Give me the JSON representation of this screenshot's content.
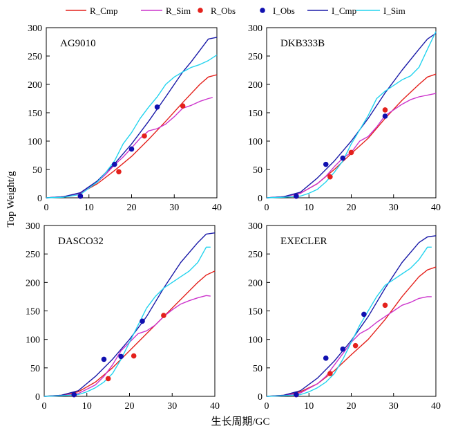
{
  "figure": {
    "ylabel": "Top Weight/g",
    "xlabel": "生长周期/GC"
  },
  "colors": {
    "R_Cmp": "#e4211c",
    "R_Sim": "#cc33cc",
    "R_Obs": "#e4211c",
    "I_Obs": "#1010b0",
    "I_Cmp": "#1a1aa8",
    "I_Sim": "#22d3ee"
  },
  "legend": [
    {
      "name": "R_Cmp",
      "kind": "line",
      "color": "#e4211c"
    },
    {
      "name": "R_Sim",
      "kind": "line",
      "color": "#cc33cc"
    },
    {
      "name": "R_Obs",
      "kind": "marker",
      "color": "#e4211c"
    },
    {
      "name": "I_Obs",
      "kind": "marker",
      "color": "#1010b0"
    },
    {
      "name": "I_Cmp",
      "kind": "line",
      "color": "#1a1aa8"
    },
    {
      "name": "I_Sim",
      "kind": "line",
      "color": "#22d3ee"
    }
  ],
  "chart_data": [
    {
      "type": "line",
      "title": "AG9010",
      "xlim": [
        0,
        40
      ],
      "ylim": [
        0,
        300
      ],
      "xticks": [
        0,
        10,
        20,
        30,
        40
      ],
      "yticks": [
        0,
        50,
        100,
        150,
        200,
        250,
        300
      ],
      "series": [
        {
          "name": "R_Cmp",
          "kind": "line",
          "x": [
            0,
            4,
            8,
            12,
            16,
            20,
            24,
            28,
            32,
            36,
            38,
            40
          ],
          "y": [
            0,
            2,
            8,
            25,
            48,
            73,
            103,
            135,
            168,
            200,
            213,
            217
          ]
        },
        {
          "name": "R_Sim",
          "kind": "line",
          "x": [
            0,
            4,
            8,
            12,
            14,
            16,
            18,
            20,
            22,
            24,
            26,
            28,
            30,
            32,
            34,
            36,
            38,
            39
          ],
          "y": [
            0,
            2,
            8,
            28,
            42,
            58,
            72,
            88,
            105,
            118,
            122,
            130,
            143,
            158,
            163,
            170,
            175,
            177
          ]
        },
        {
          "name": "I_Cmp",
          "kind": "line",
          "x": [
            0,
            4,
            8,
            12,
            16,
            20,
            24,
            28,
            32,
            34,
            36,
            38,
            40
          ],
          "y": [
            0,
            2,
            9,
            30,
            60,
            95,
            135,
            178,
            222,
            240,
            260,
            280,
            283
          ]
        },
        {
          "name": "I_Sim",
          "kind": "line",
          "x": [
            0,
            4,
            8,
            12,
            14,
            16,
            18,
            20,
            22,
            24,
            26,
            28,
            30,
            32,
            34,
            36,
            38,
            40
          ],
          "y": [
            0,
            1,
            6,
            28,
            45,
            65,
            95,
            115,
            140,
            160,
            178,
            200,
            213,
            222,
            230,
            235,
            242,
            252
          ]
        },
        {
          "name": "R_Obs",
          "kind": "marker",
          "x": [
            8,
            17,
            23,
            32
          ],
          "y": [
            3,
            46,
            109,
            162
          ]
        },
        {
          "name": "I_Obs",
          "kind": "marker",
          "x": [
            8,
            16,
            20,
            26
          ],
          "y": [
            3,
            59,
            86,
            160
          ]
        }
      ]
    },
    {
      "type": "line",
      "title": "DKB333B",
      "xlim": [
        0,
        40
      ],
      "ylim": [
        0,
        300
      ],
      "xticks": [
        0,
        10,
        20,
        30,
        40
      ],
      "yticks": [
        0,
        50,
        100,
        150,
        200,
        250,
        300
      ],
      "series": [
        {
          "name": "R_Cmp",
          "kind": "line",
          "x": [
            0,
            4,
            8,
            12,
            16,
            20,
            24,
            28,
            32,
            36,
            38,
            40
          ],
          "y": [
            0,
            2,
            8,
            25,
            50,
            78,
            105,
            140,
            172,
            200,
            213,
            218
          ]
        },
        {
          "name": "R_Sim",
          "kind": "line",
          "x": [
            0,
            4,
            8,
            12,
            14,
            16,
            18,
            20,
            22,
            24,
            26,
            28,
            30,
            32,
            34,
            36,
            38,
            40
          ],
          "y": [
            0,
            2,
            8,
            25,
            38,
            55,
            70,
            80,
            100,
            108,
            125,
            145,
            155,
            165,
            173,
            178,
            181,
            184
          ]
        },
        {
          "name": "I_Cmp",
          "kind": "line",
          "x": [
            0,
            4,
            8,
            12,
            16,
            20,
            24,
            28,
            32,
            36,
            38,
            40
          ],
          "y": [
            0,
            2,
            10,
            35,
            65,
            100,
            140,
            185,
            225,
            262,
            280,
            290
          ]
        },
        {
          "name": "I_Sim",
          "kind": "line",
          "x": [
            0,
            4,
            8,
            10,
            12,
            14,
            16,
            18,
            20,
            22,
            24,
            26,
            28,
            30,
            32,
            34,
            36,
            38,
            40
          ],
          "y": [
            0,
            1,
            3,
            8,
            15,
            28,
            45,
            65,
            95,
            120,
            145,
            175,
            188,
            198,
            208,
            215,
            230,
            262,
            293
          ]
        },
        {
          "name": "R_Obs",
          "kind": "marker",
          "x": [
            7,
            15,
            20,
            28
          ],
          "y": [
            3,
            37,
            80,
            155
          ]
        },
        {
          "name": "I_Obs",
          "kind": "marker",
          "x": [
            7,
            14,
            18,
            28
          ],
          "y": [
            3,
            59,
            70,
            144
          ]
        }
      ]
    },
    {
      "type": "line",
      "title": "DASCO32",
      "xlim": [
        0,
        40
      ],
      "ylim": [
        0,
        300
      ],
      "xticks": [
        0,
        10,
        20,
        30,
        40
      ],
      "yticks": [
        0,
        50,
        100,
        150,
        200,
        250,
        300
      ],
      "series": [
        {
          "name": "R_Cmp",
          "kind": "line",
          "x": [
            0,
            4,
            8,
            12,
            16,
            20,
            24,
            28,
            32,
            36,
            38,
            40
          ],
          "y": [
            0,
            2,
            8,
            25,
            50,
            80,
            110,
            140,
            170,
            200,
            213,
            220
          ]
        },
        {
          "name": "R_Sim",
          "kind": "line",
          "x": [
            0,
            4,
            8,
            12,
            14,
            16,
            18,
            20,
            22,
            24,
            26,
            28,
            30,
            32,
            34,
            36,
            38,
            39
          ],
          "y": [
            0,
            1,
            5,
            20,
            35,
            55,
            80,
            95,
            110,
            115,
            125,
            140,
            152,
            162,
            168,
            173,
            177,
            176
          ]
        },
        {
          "name": "I_Cmp",
          "kind": "line",
          "x": [
            0,
            4,
            8,
            12,
            16,
            20,
            24,
            28,
            32,
            36,
            38,
            40
          ],
          "y": [
            0,
            2,
            10,
            35,
            65,
            100,
            140,
            190,
            235,
            270,
            285,
            287
          ]
        },
        {
          "name": "I_Sim",
          "kind": "line",
          "x": [
            0,
            4,
            8,
            10,
            12,
            14,
            16,
            18,
            20,
            22,
            24,
            26,
            28,
            30,
            32,
            34,
            36,
            38,
            39
          ],
          "y": [
            0,
            1,
            3,
            8,
            15,
            25,
            40,
            65,
            95,
            125,
            155,
            175,
            190,
            200,
            210,
            220,
            235,
            262,
            262
          ]
        },
        {
          "name": "R_Obs",
          "kind": "marker",
          "x": [
            7,
            15,
            21,
            28
          ],
          "y": [
            3,
            31,
            71,
            142
          ]
        },
        {
          "name": "I_Obs",
          "kind": "marker",
          "x": [
            7,
            14,
            18,
            23
          ],
          "y": [
            3,
            65,
            70,
            132
          ]
        }
      ]
    },
    {
      "type": "line",
      "title": "EXECLER",
      "xlim": [
        0,
        40
      ],
      "ylim": [
        0,
        300
      ],
      "xticks": [
        0,
        10,
        20,
        30,
        40
      ],
      "yticks": [
        0,
        50,
        100,
        150,
        200,
        250,
        300
      ],
      "series": [
        {
          "name": "R_Cmp",
          "kind": "line",
          "x": [
            0,
            4,
            8,
            12,
            16,
            20,
            24,
            28,
            32,
            36,
            38,
            40
          ],
          "y": [
            0,
            2,
            8,
            22,
            45,
            73,
            100,
            135,
            175,
            210,
            222,
            227
          ]
        },
        {
          "name": "R_Sim",
          "kind": "line",
          "x": [
            0,
            4,
            8,
            12,
            14,
            16,
            18,
            20,
            22,
            24,
            26,
            28,
            30,
            32,
            34,
            36,
            38,
            39
          ],
          "y": [
            0,
            1,
            6,
            22,
            35,
            55,
            75,
            95,
            110,
            118,
            130,
            140,
            150,
            160,
            165,
            172,
            175,
            175
          ]
        },
        {
          "name": "I_Cmp",
          "kind": "line",
          "x": [
            0,
            4,
            8,
            12,
            16,
            20,
            24,
            28,
            32,
            36,
            38,
            40
          ],
          "y": [
            0,
            2,
            10,
            32,
            62,
            98,
            140,
            190,
            235,
            270,
            280,
            282
          ]
        },
        {
          "name": "I_Sim",
          "kind": "line",
          "x": [
            0,
            4,
            8,
            10,
            12,
            14,
            16,
            18,
            20,
            22,
            24,
            26,
            28,
            30,
            32,
            34,
            36,
            38,
            39
          ],
          "y": [
            0,
            1,
            3,
            8,
            15,
            25,
            40,
            65,
            95,
            125,
            150,
            175,
            195,
            205,
            215,
            225,
            240,
            262,
            262
          ]
        },
        {
          "name": "R_Obs",
          "kind": "marker",
          "x": [
            7,
            15,
            21,
            28
          ],
          "y": [
            3,
            40,
            89,
            160
          ]
        },
        {
          "name": "I_Obs",
          "kind": "marker",
          "x": [
            7,
            14,
            18,
            23
          ],
          "y": [
            3,
            67,
            83,
            144
          ]
        }
      ]
    }
  ]
}
